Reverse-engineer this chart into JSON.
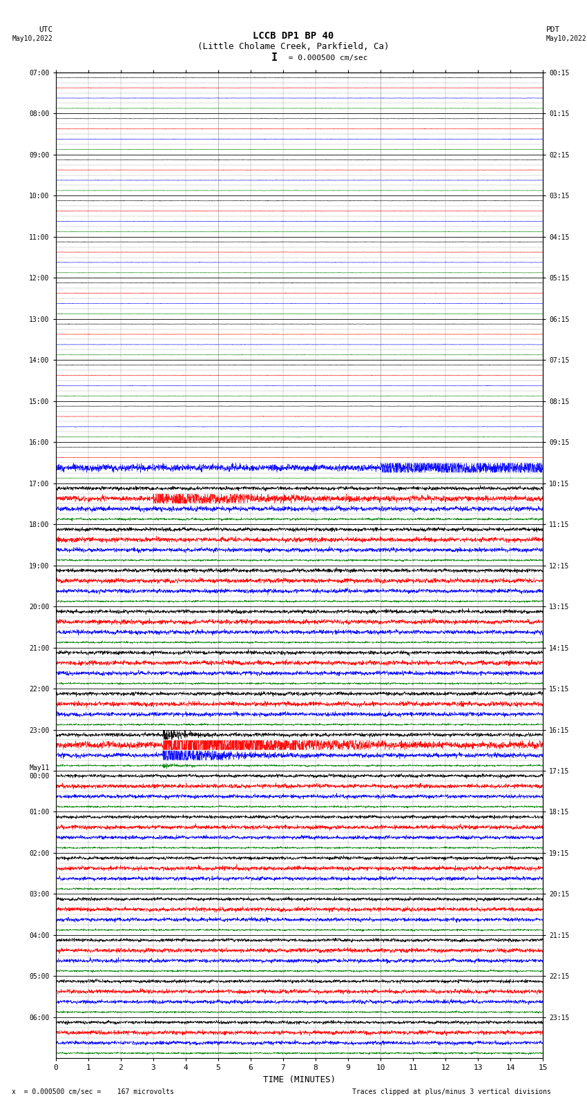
{
  "title_line1": "LCCB DP1 BP 40",
  "title_line2": "(Little Cholame Creek, Parkfield, Ca)",
  "scale_text": "I = 0.000500 cm/sec",
  "left_label": "UTC",
  "left_date": "May10,2022",
  "right_label": "PDT",
  "right_date": "May10,2022",
  "xlabel": "TIME (MINUTES)",
  "footer_left": "x  = 0.000500 cm/sec =    167 microvolts",
  "footer_right": "Traces clipped at plus/minus 3 vertical divisions",
  "xlim": [
    0,
    15
  ],
  "x_ticks": [
    0,
    1,
    2,
    3,
    4,
    5,
    6,
    7,
    8,
    9,
    10,
    11,
    12,
    13,
    14,
    15
  ],
  "utc_times": [
    "07:00",
    "08:00",
    "09:00",
    "10:00",
    "11:00",
    "12:00",
    "13:00",
    "14:00",
    "15:00",
    "16:00",
    "17:00",
    "18:00",
    "19:00",
    "20:00",
    "21:00",
    "22:00",
    "23:00",
    "May11\n00:00",
    "01:00",
    "02:00",
    "03:00",
    "04:00",
    "05:00",
    "06:00"
  ],
  "pdt_times": [
    "00:15",
    "01:15",
    "02:15",
    "03:15",
    "04:15",
    "05:15",
    "06:15",
    "07:15",
    "08:15",
    "09:15",
    "10:15",
    "11:15",
    "12:15",
    "13:15",
    "14:15",
    "15:15",
    "16:15",
    "17:15",
    "18:15",
    "19:15",
    "20:15",
    "21:15",
    "22:15",
    "23:15"
  ],
  "trace_colors": [
    "black",
    "red",
    "blue",
    "green"
  ],
  "num_hours": 24,
  "traces_per_hour": 4,
  "noise_seed": 42,
  "bg_color": "white",
  "figure_width": 8.5,
  "figure_height": 16.13
}
